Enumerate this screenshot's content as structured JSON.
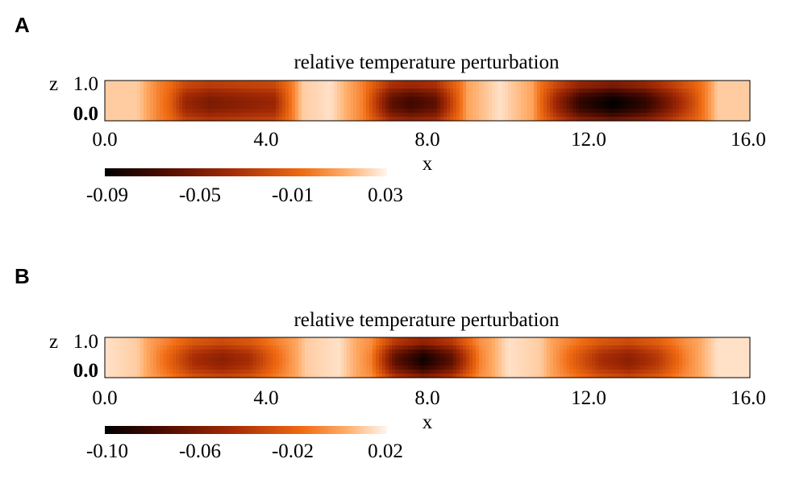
{
  "chart_data": [
    {
      "type": "heatmap",
      "panel": "A",
      "title": "relative temperature perturbation",
      "xlabel": "x",
      "ylabel": "z",
      "xlim": [
        0.0,
        16.0
      ],
      "ylim": [
        0.0,
        1.0
      ],
      "x_ticks": [
        "0.0",
        "4.0",
        "8.0",
        "12.0",
        "16.0"
      ],
      "y_ticks": [
        "0.0",
        "1.0"
      ],
      "colorbar": {
        "range": [
          -0.09,
          0.03
        ],
        "ticks": [
          "-0.09",
          "-0.05",
          "-0.01",
          "0.03"
        ]
      },
      "column_profile": {
        "x": [
          0.0,
          0.8,
          1.6,
          2.0,
          2.6,
          3.4,
          4.2,
          4.9,
          5.6,
          6.4,
          7.1,
          7.6,
          8.2,
          9.0,
          9.8,
          10.6,
          11.2,
          11.8,
          12.6,
          13.4,
          14.0,
          14.6,
          15.2,
          16.0
        ],
        "value": [
          0.02,
          0.02,
          -0.01,
          -0.04,
          -0.05,
          -0.045,
          -0.04,
          0.02,
          0.025,
          0.0,
          -0.06,
          -0.07,
          -0.06,
          0.01,
          0.025,
          0.01,
          -0.04,
          -0.075,
          -0.09,
          -0.075,
          -0.05,
          -0.02,
          0.02,
          0.02
        ]
      }
    },
    {
      "type": "heatmap",
      "panel": "B",
      "title": "relative temperature perturbation",
      "xlabel": "x",
      "ylabel": "z",
      "xlim": [
        0.0,
        16.0
      ],
      "ylim": [
        0.0,
        1.0
      ],
      "x_ticks": [
        "0.0",
        "4.0",
        "8.0",
        "12.0",
        "16.0"
      ],
      "y_ticks": [
        "0.0",
        "1.0"
      ],
      "colorbar": {
        "range": [
          -0.1,
          0.02
        ],
        "ticks": [
          "-0.10",
          "-0.06",
          "-0.02",
          "0.02"
        ]
      },
      "column_profile": {
        "x": [
          0.0,
          0.8,
          1.6,
          2.2,
          2.9,
          3.6,
          4.2,
          5.0,
          5.8,
          6.6,
          7.2,
          7.9,
          8.6,
          9.3,
          10.0,
          10.8,
          11.6,
          12.3,
          13.0,
          13.7,
          14.4,
          15.2,
          16.0
        ],
        "value": [
          0.015,
          0.01,
          -0.02,
          -0.045,
          -0.055,
          -0.045,
          -0.02,
          0.01,
          0.015,
          -0.01,
          -0.07,
          -0.095,
          -0.07,
          -0.01,
          0.015,
          0.01,
          -0.02,
          -0.045,
          -0.055,
          -0.04,
          -0.01,
          0.015,
          0.015
        ]
      }
    }
  ],
  "panels": [
    {
      "letter": "A"
    },
    {
      "letter": "B"
    }
  ]
}
